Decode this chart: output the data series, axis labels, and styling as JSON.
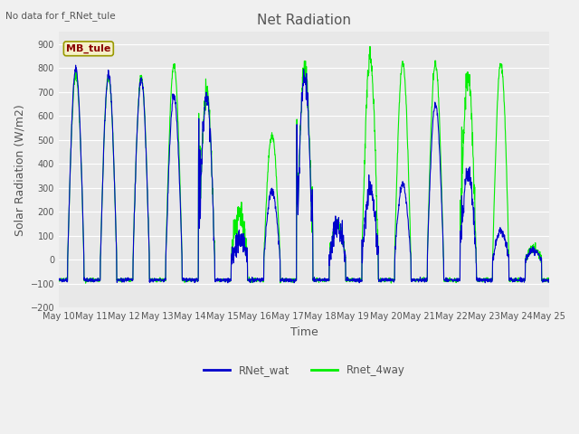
{
  "title": "Net Radiation",
  "xlabel": "Time",
  "ylabel": "Solar Radiation (W/m2)",
  "ylim": [
    -200,
    950
  ],
  "yticks": [
    -200,
    -100,
    0,
    100,
    200,
    300,
    400,
    500,
    600,
    700,
    800,
    900
  ],
  "no_data_text": "No data for f_RNet_tule",
  "annotation_text": "MB_tule",
  "bg_color": "#e8e8e8",
  "fig_color": "#f0f0f0",
  "line1_color": "#0000cc",
  "line2_color": "#00ee00",
  "xtick_labels": [
    "May 10",
    "May 11",
    "May 12",
    "May 13",
    "May 14",
    "May 15",
    "May 16",
    "May 17",
    "May 18",
    "May 19",
    "May 20",
    "May 21",
    "May 22",
    "May 23",
    "May 24",
    "May 25"
  ],
  "legend_labels": [
    "RNet_wat",
    "Rnet_4way"
  ],
  "title_fontsize": 11,
  "axis_label_fontsize": 9,
  "tick_fontsize": 7,
  "night_val": -85,
  "noise_day": 8,
  "noise_night": 4
}
